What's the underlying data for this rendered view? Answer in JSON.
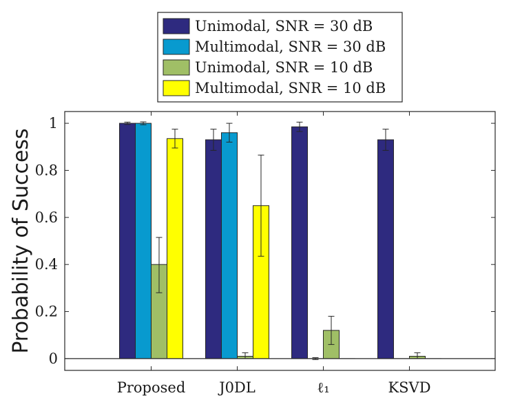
{
  "chart_data": {
    "type": "bar",
    "categories": [
      "Proposed",
      "J0DL",
      "ℓ₁",
      "KSVD"
    ],
    "series": [
      {
        "name": "Unimodal, SNR = 30 dB",
        "color": "#2e2a7f",
        "values": [
          1.0,
          0.93,
          0.985,
          0.93
        ],
        "err_low": [
          0.005,
          0.045,
          0.02,
          0.045
        ],
        "err_high": [
          0.005,
          0.045,
          0.02,
          0.045
        ]
      },
      {
        "name": "Multimodal, SNR = 30 dB",
        "color": "#089acf",
        "values": [
          1.0,
          0.96,
          0.0,
          0.0
        ],
        "err_low": [
          0.006,
          0.04,
          0.004,
          0.0
        ],
        "err_high": [
          0.006,
          0.04,
          0.004,
          0.0
        ]
      },
      {
        "name": "Unimodal, SNR = 10 dB",
        "color": "#a0bf66",
        "values": [
          0.4,
          0.01,
          0.12,
          0.01
        ],
        "err_low": [
          0.12,
          0.01,
          0.06,
          0.01
        ],
        "err_high": [
          0.115,
          0.015,
          0.06,
          0.015
        ]
      },
      {
        "name": "Multimodal, SNR = 10 dB",
        "color": "#ffff00",
        "values": [
          0.935,
          0.65,
          0.0,
          0.0
        ],
        "err_low": [
          0.04,
          0.215,
          0.0,
          0.0
        ],
        "err_high": [
          0.04,
          0.215,
          0.0,
          0.0
        ]
      }
    ],
    "xlabel": "",
    "ylabel": "Probability of Success",
    "ylim": [
      -0.05,
      1.05
    ],
    "yticks": [
      0,
      0.2,
      0.4,
      0.6,
      0.8,
      1
    ],
    "ytick_labels": [
      "0",
      "0.2",
      "0.4",
      "0.6",
      "0.8",
      "1"
    ],
    "grid": false,
    "legend_position": "top-center, outside"
  }
}
